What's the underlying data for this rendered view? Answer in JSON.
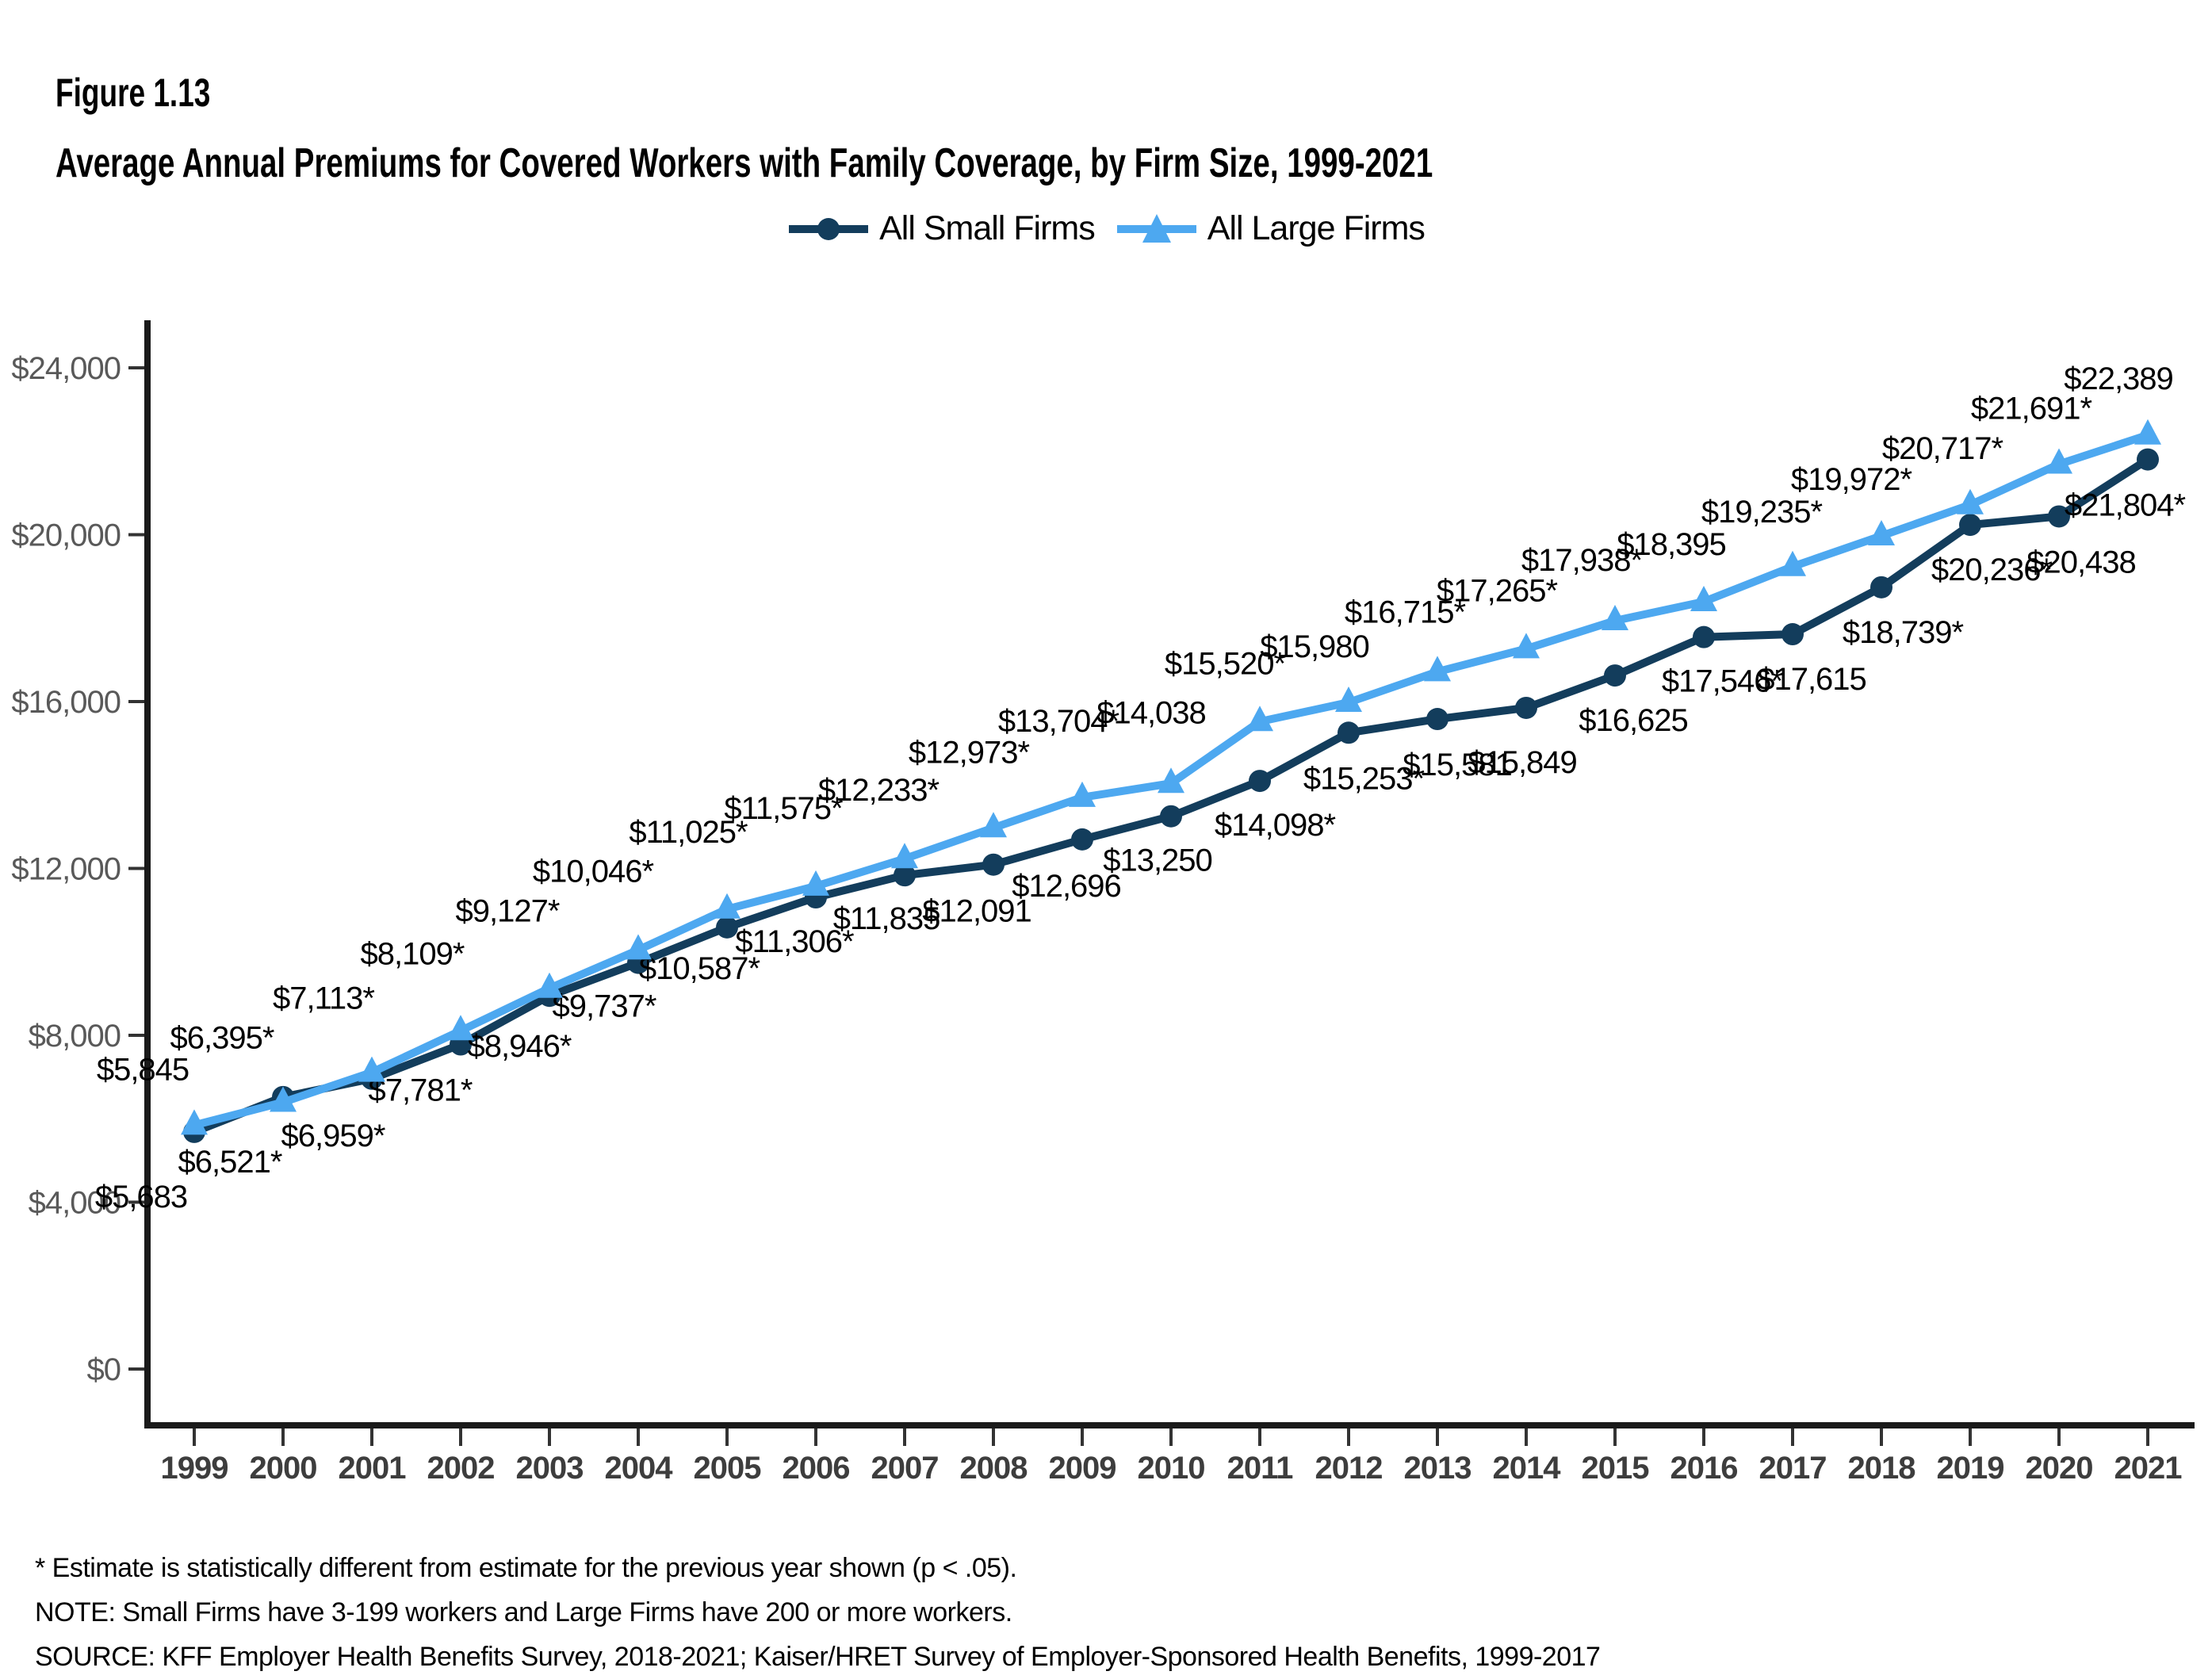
{
  "header": {
    "figure_label": "Figure 1.13",
    "title": "Average Annual Premiums for Covered Workers with Family Coverage, by Firm Size, 1999-2021"
  },
  "legend": {
    "items": [
      {
        "label": "All Small Firms",
        "marker": "circle",
        "color": "#133D5C"
      },
      {
        "label": "All Large Firms",
        "marker": "triangle",
        "color": "#4DA8F0"
      }
    ]
  },
  "footnotes": {
    "asterisk": "* Estimate is statistically different from estimate for the previous year shown (p < .05).",
    "note": "NOTE: Small Firms have 3-199 workers and Large Firms have 200 or more workers.",
    "source": "SOURCE: KFF Employer Health Benefits Survey, 2018-2021; Kaiser/HRET Survey of Employer-Sponsored Health Benefits, 1999-2017"
  },
  "chart_data": {
    "type": "line",
    "title": "Average Annual Premiums for Covered Workers with Family Coverage, by Firm Size, 1999-2021",
    "xlabel": "",
    "ylabel": "",
    "categories": [
      1999,
      2000,
      2001,
      2002,
      2003,
      2004,
      2005,
      2006,
      2007,
      2008,
      2009,
      2010,
      2011,
      2012,
      2013,
      2014,
      2015,
      2016,
      2017,
      2018,
      2019,
      2020,
      2021
    ],
    "ylim": [
      0,
      24000
    ],
    "y_tick_step": 4000,
    "y_tick_labels": [
      "$0",
      "$4,000",
      "$8,000",
      "$12,000",
      "$16,000",
      "$20,000",
      "$24,000"
    ],
    "grid": false,
    "legend_position": "top",
    "series": [
      {
        "name": "All Small Firms",
        "key": "small",
        "color": "#133D5C",
        "marker": "circle",
        "values": [
          5683,
          6521,
          6959,
          7781,
          8946,
          9737,
          10587,
          11306,
          11835,
          12091,
          12696,
          13250,
          14098,
          15253,
          15581,
          15849,
          16625,
          17546,
          17615,
          18739,
          20236,
          20438,
          21804
        ],
        "labels": [
          "$5,683",
          "$6,521*",
          "$6,959*",
          "$7,781*",
          "$8,946*",
          "$9,737*",
          "$10,587*",
          "$11,306*",
          "$11,835",
          "$12,091",
          "$12,696",
          "$13,250",
          "$14,098*",
          "$15,253*",
          "$15,581",
          "$15,849",
          "$16,625",
          "$17,546*",
          "$17,615",
          "$18,739*",
          "$20,236*",
          "$20,438",
          "$21,804*"
        ],
        "label_offsets": [
          [
            -67,
            81
          ],
          [
            -67,
            81
          ],
          [
            -49,
            71
          ],
          [
            -51,
            57
          ],
          [
            -38,
            63
          ],
          [
            -43,
            54
          ],
          [
            -35,
            51
          ],
          [
            -27,
            55
          ],
          [
            -23,
            54
          ],
          [
            -21,
            58
          ],
          [
            -20,
            58
          ],
          [
            -17,
            55
          ],
          [
            19,
            55
          ],
          [
            19,
            57
          ],
          [
            25,
            57
          ],
          [
            -5,
            68
          ],
          [
            23,
            56
          ],
          [
            23,
            55
          ],
          [
            24,
            56
          ],
          [
            27,
            56
          ],
          [
            27,
            56
          ],
          [
            28,
            57
          ],
          [
            -29,
            57
          ]
        ]
      },
      {
        "name": "All Large Firms",
        "key": "large",
        "color": "#4DA8F0",
        "marker": "triangle",
        "values": [
          5845,
          6395,
          7113,
          8109,
          9127,
          10046,
          11025,
          11575,
          12233,
          12973,
          13704,
          14038,
          15520,
          15980,
          16715,
          17265,
          17938,
          18395,
          19235,
          19972,
          20717,
          21691,
          22389
        ],
        "labels": [
          "$5,845",
          "$6,395*",
          "$7,113*",
          "$8,109*",
          "$9,127*",
          "$10,046*",
          "$11,025*",
          "$11,575*",
          "$12,233*",
          "$12,973*",
          "$13,704*",
          "$14,038",
          "$15,520*",
          "$15,980",
          "$16,715*",
          "$17,265*",
          "$17,938*",
          "$18,395",
          "$19,235*",
          "$19,972*",
          "$20,717*",
          "$21,691*",
          "$22,389"
        ],
        "label_offsets": [
          [
            -65,
            -71
          ],
          [
            -77,
            -82
          ],
          [
            -61,
            -94
          ],
          [
            -61,
            -98
          ],
          [
            -53,
            -98
          ],
          [
            -57,
            -100
          ],
          [
            -49,
            -98
          ],
          [
            -41,
            -99
          ],
          [
            -33,
            -87
          ],
          [
            -31,
            -96
          ],
          [
            -30,
            -97
          ],
          [
            -25,
            -90
          ],
          [
            -44,
            -74
          ],
          [
            -43,
            -71
          ],
          [
            -41,
            -76
          ],
          [
            -37,
            -74
          ],
          [
            -42,
            -77
          ],
          [
            -41,
            -73
          ],
          [
            -39,
            -70
          ],
          [
            -38,
            -72
          ],
          [
            -35,
            -72
          ],
          [
            -35,
            -71
          ],
          [
            -37,
            -72
          ]
        ]
      }
    ],
    "colors": {
      "axis_line": "#1a1a1a",
      "tick_mark": "#333333",
      "y_tick_label": "#595959",
      "x_tick_label": "#3d3d3d",
      "data_label": "#000000"
    }
  }
}
